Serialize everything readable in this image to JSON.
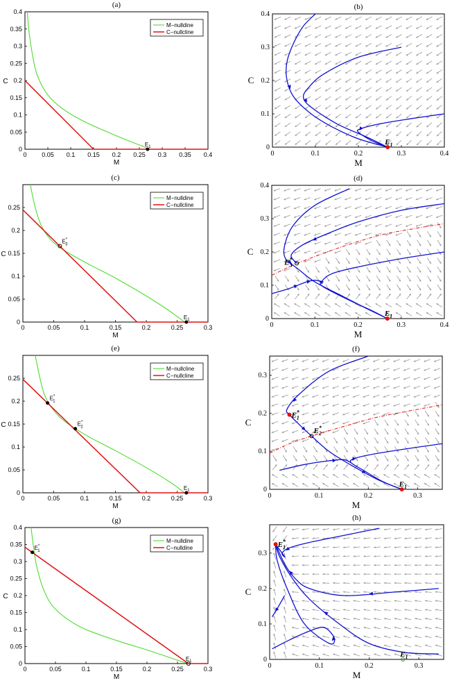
{
  "colors": {
    "m_nullcline": "#4ddb2c",
    "c_nullcline": "#e01010",
    "trajectory": "#1010d0",
    "separatrix": "#e01010",
    "vector_field": "#9a9a9a",
    "unstable_point": "#e01010",
    "stable_point": "#2a9a2a"
  },
  "chart_data": [
    {
      "id": "a",
      "type": "line",
      "title": "(a)",
      "xlabel": "M",
      "ylabel": "C",
      "xlim": [
        0,
        0.4
      ],
      "ylim": [
        0,
        0.4
      ],
      "xticks": [
        "0",
        "0.05",
        "0.1",
        "0.15",
        "0.2",
        "0.25",
        "0.3",
        "0.35",
        "0.4"
      ],
      "xtick_values": [
        0,
        0.05,
        0.1,
        0.15,
        0.2,
        0.25,
        0.3,
        0.35,
        0.4
      ],
      "yticks": [
        "0",
        "0.05",
        "0.1",
        "0.15",
        "0.2",
        "0.25",
        "0.3",
        "0.35",
        "0.4"
      ],
      "ytick_values": [
        0,
        0.05,
        0.1,
        0.15,
        0.2,
        0.25,
        0.3,
        0.35,
        0.4
      ],
      "legend": [
        "M−nulldine",
        "C−nullcline"
      ],
      "series": [
        {
          "name": "M−nulldine",
          "color": "#4ddb2c",
          "x": [
            0.005,
            0.01,
            0.02,
            0.03,
            0.05,
            0.08,
            0.12,
            0.17,
            0.22,
            0.26,
            0.268
          ],
          "y": [
            0.4,
            0.33,
            0.25,
            0.205,
            0.158,
            0.12,
            0.087,
            0.056,
            0.028,
            0.007,
            0
          ]
        },
        {
          "name": "C−nullcline",
          "color": "#e01010",
          "x": [
            0,
            0.15,
            0.4
          ],
          "y": [
            0.2,
            0,
            0
          ]
        }
      ],
      "points": [
        {
          "label": "E",
          "sub": "1",
          "sup": "",
          "x": 0.268,
          "y": 0,
          "style": "black-dot"
        }
      ]
    },
    {
      "id": "b",
      "type": "phase",
      "title": "(b)",
      "xlabel": "M",
      "ylabel": "C",
      "xlim": [
        0,
        0.4
      ],
      "ylim": [
        0,
        0.4
      ],
      "xticks": [
        "0",
        "0.1",
        "0.2",
        "0.3",
        "0.4"
      ],
      "xtick_values": [
        0,
        0.1,
        0.2,
        0.3,
        0.4
      ],
      "yticks": [
        "0",
        "0.1",
        "0.2",
        "0.3",
        "0.4"
      ],
      "ytick_values": [
        0,
        0.1,
        0.2,
        0.3,
        0.4
      ],
      "trajectories": [
        {
          "x": [
            0.1,
            0.07,
            0.045,
            0.033,
            0.034,
            0.05,
            0.09,
            0.14,
            0.2,
            0.268
          ],
          "y": [
            0.4,
            0.36,
            0.3,
            0.25,
            0.2,
            0.15,
            0.1,
            0.06,
            0.025,
            0
          ],
          "arrow": 1
        },
        {
          "x": [
            0.3,
            0.2,
            0.12,
            0.085,
            0.072,
            0.09,
            0.15,
            0.22,
            0.268
          ],
          "y": [
            0.3,
            0.27,
            0.22,
            0.18,
            0.15,
            0.12,
            0.07,
            0.03,
            0
          ],
          "arrow": 1
        },
        {
          "x": [
            0.4,
            0.32,
            0.25,
            0.205,
            0.2,
            0.23,
            0.268
          ],
          "y": [
            0.1,
            0.085,
            0.07,
            0.055,
            0.045,
            0.02,
            0
          ],
          "arrow": 1
        }
      ],
      "separatrix": [],
      "points": [
        {
          "label": "E",
          "sub": "1",
          "sup": "",
          "x": 0.268,
          "y": 0,
          "style": "red-dot"
        }
      ],
      "field": {
        "kind": "b"
      }
    },
    {
      "id": "c",
      "type": "line",
      "title": "(c)",
      "xlabel": "M",
      "ylabel": "C",
      "xlim": [
        0,
        0.3
      ],
      "ylim": [
        0,
        0.3
      ],
      "xticks": [
        "0",
        "0.05",
        "0.1",
        "0.15",
        "0.2",
        "0.25",
        "0.3"
      ],
      "xtick_values": [
        0,
        0.05,
        0.1,
        0.15,
        0.2,
        0.25,
        0.3
      ],
      "yticks": [
        "0",
        "0.05",
        "0.1",
        "0.15",
        "0.2",
        "0.25"
      ],
      "ytick_values": [
        0,
        0.05,
        0.1,
        0.15,
        0.2,
        0.25
      ],
      "legend": [
        "M−nulldine",
        "C−nullcline"
      ],
      "series": [
        {
          "name": "M−nulldine",
          "color": "#4ddb2c",
          "x": [
            0.012,
            0.02,
            0.03,
            0.045,
            0.06,
            0.08,
            0.11,
            0.15,
            0.2,
            0.24,
            0.262
          ],
          "y": [
            0.3,
            0.25,
            0.21,
            0.18,
            0.163,
            0.146,
            0.124,
            0.096,
            0.057,
            0.022,
            0
          ],
          "arrow": 0
        },
        {
          "name": "C−nullcline",
          "color": "#e01010",
          "x": [
            0,
            0.185,
            0.3
          ],
          "y": [
            0.245,
            0,
            0
          ]
        }
      ],
      "points": [
        {
          "label": "E",
          "sub": "3",
          "sup": "*",
          "x": 0.06,
          "y": 0.166,
          "style": "open"
        },
        {
          "label": "E",
          "sub": "1",
          "sup": "",
          "x": 0.265,
          "y": 0,
          "style": "black-dot"
        }
      ]
    },
    {
      "id": "d",
      "type": "phase",
      "title": "(d)",
      "xlabel": "M",
      "ylabel": "C",
      "xlim": [
        0,
        0.4
      ],
      "ylim": [
        0,
        0.4
      ],
      "xticks": [
        "0",
        "0.1",
        "0.2",
        "0.3",
        "0.4"
      ],
      "xtick_values": [
        0,
        0.1,
        0.2,
        0.3,
        0.4
      ],
      "yticks": [
        "0",
        "0.1",
        "0.2",
        "0.3",
        "0.4"
      ],
      "ytick_values": [
        0,
        0.1,
        0.2,
        0.3,
        0.4
      ],
      "trajectories": [
        {
          "x": [
            0.18,
            0.1,
            0.05,
            0.03,
            0.032,
            0.06,
            0.1,
            0.16,
            0.22,
            0.268
          ],
          "y": [
            0.39,
            0.34,
            0.28,
            0.22,
            0.18,
            0.15,
            0.11,
            0.07,
            0.03,
            0
          ],
          "arrow": 1
        },
        {
          "x": [
            0.4,
            0.3,
            0.2,
            0.12,
            0.07,
            0.045,
            0.058
          ],
          "y": [
            0.345,
            0.325,
            0.29,
            0.25,
            0.22,
            0.19,
            0.166
          ],
          "arrow": 1
        },
        {
          "x": [
            0.4,
            0.3,
            0.2,
            0.14,
            0.115,
            0.12,
            0.18,
            0.23,
            0.268
          ],
          "y": [
            0.2,
            0.18,
            0.155,
            0.135,
            0.11,
            0.095,
            0.055,
            0.025,
            0
          ],
          "arrow": 1
        },
        {
          "x": [
            0.0,
            0.04,
            0.08,
            0.1,
            0.12
          ],
          "y": [
            0.075,
            0.09,
            0.11,
            0.115,
            0.11
          ],
          "arrow": 2
        }
      ],
      "separatrix": [
        {
          "x": [
            0.0,
            0.06,
            0.15,
            0.25,
            0.33,
            0.4
          ],
          "y": [
            0.13,
            0.166,
            0.21,
            0.25,
            0.27,
            0.285
          ]
        }
      ],
      "points": [
        {
          "label": "E",
          "sub": "3",
          "sup": "*",
          "x": 0.058,
          "y": 0.166,
          "style": "open"
        },
        {
          "label": "E",
          "sub": "1",
          "sup": "",
          "x": 0.268,
          "y": 0,
          "style": "red-dot"
        }
      ],
      "field": {
        "kind": "d"
      }
    },
    {
      "id": "e",
      "type": "line",
      "title": "(e)",
      "xlabel": "M",
      "ylabel": "C",
      "xlim": [
        0,
        0.3
      ],
      "ylim": [
        0,
        0.3
      ],
      "xticks": [
        "0",
        "0.05",
        "0.1",
        "0.15",
        "0.2",
        "0.25",
        "0.3"
      ],
      "xtick_values": [
        0,
        0.05,
        0.1,
        0.15,
        0.2,
        0.25,
        0.3
      ],
      "yticks": [
        "0",
        "0.05",
        "0.1",
        "0.15",
        "0.2",
        "0.25"
      ],
      "ytick_values": [
        0,
        0.05,
        0.1,
        0.15,
        0.2,
        0.25
      ],
      "legend": [
        "M−nullcline",
        "C−nullcline"
      ],
      "series": [
        {
          "name": "M−nullcline",
          "color": "#4ddb2c",
          "x": [
            0.02,
            0.03,
            0.04,
            0.06,
            0.085,
            0.11,
            0.15,
            0.2,
            0.24,
            0.262
          ],
          "y": [
            0.3,
            0.237,
            0.2,
            0.165,
            0.14,
            0.12,
            0.092,
            0.055,
            0.022,
            0
          ]
        },
        {
          "name": "C−nullcline",
          "color": "#e01010",
          "x": [
            0,
            0.19,
            0.3
          ],
          "y": [
            0.248,
            0,
            0
          ]
        }
      ],
      "points": [
        {
          "label": "E",
          "sub": "1",
          "sup": "*",
          "x": 0.04,
          "y": 0.196,
          "style": "black-dot"
        },
        {
          "label": "E",
          "sub": "2",
          "sup": "*",
          "x": 0.085,
          "y": 0.14,
          "style": "black-dot"
        },
        {
          "label": "E",
          "sub": "1",
          "sup": "",
          "x": 0.265,
          "y": 0,
          "style": "black-dot"
        }
      ]
    },
    {
      "id": "f",
      "type": "phase",
      "title": "(f)",
      "xlabel": "M",
      "ylabel": "C",
      "xlim": [
        0,
        0.35
      ],
      "ylim": [
        0,
        0.35
      ],
      "xticks": [
        "0",
        "0.1",
        "0.2",
        "0.3"
      ],
      "xtick_values": [
        0,
        0.1,
        0.2,
        0.3
      ],
      "yticks": [
        "0",
        "0.1",
        "0.2",
        "0.3"
      ],
      "ytick_values": [
        0,
        0.1,
        0.2,
        0.3
      ],
      "trajectories": [
        {
          "x": [
            0.2,
            0.12,
            0.06,
            0.035,
            0.04
          ],
          "y": [
            0.35,
            0.31,
            0.25,
            0.21,
            0.196
          ],
          "arrow": 1
        },
        {
          "x": [
            0.04,
            0.06,
            0.085,
            0.12,
            0.17,
            0.22,
            0.268
          ],
          "y": [
            0.196,
            0.17,
            0.14,
            0.1,
            0.06,
            0.025,
            0
          ],
          "arrow": 2
        },
        {
          "x": [
            0.35,
            0.27,
            0.2,
            0.17,
            0.165,
            0.19,
            0.23,
            0.268
          ],
          "y": [
            0.12,
            0.105,
            0.09,
            0.08,
            0.07,
            0.05,
            0.02,
            0
          ],
          "arrow": 1
        },
        {
          "x": [
            0.02,
            0.07,
            0.12,
            0.15,
            0.165
          ],
          "y": [
            0.05,
            0.065,
            0.075,
            0.078,
            0.07
          ],
          "arrow": 1
        }
      ],
      "separatrix": [
        {
          "x": [
            0.0,
            0.04,
            0.085,
            0.15,
            0.22,
            0.3,
            0.35
          ],
          "y": [
            0.095,
            0.12,
            0.14,
            0.165,
            0.19,
            0.21,
            0.222
          ]
        }
      ],
      "points": [
        {
          "label": "E",
          "sub": "1",
          "sup": "*",
          "x": 0.04,
          "y": 0.196,
          "style": "red-dot"
        },
        {
          "label": "E",
          "sub": "2",
          "sup": "*",
          "x": 0.085,
          "y": 0.14,
          "style": "open"
        },
        {
          "label": "E",
          "sub": "1",
          "sup": "",
          "x": 0.268,
          "y": 0,
          "style": "red-dot"
        }
      ],
      "field": {
        "kind": "f"
      }
    },
    {
      "id": "g",
      "type": "line",
      "title": "(g)",
      "xlabel": "M",
      "ylabel": "C",
      "xlim": [
        0,
        0.3
      ],
      "ylim": [
        0,
        0.4
      ],
      "xticks": [
        "0",
        "0.05",
        "0.1",
        "0.15",
        "0.2",
        "0.25",
        "0.3"
      ],
      "xtick_values": [
        0,
        0.05,
        0.1,
        0.15,
        0.2,
        0.25,
        0.3
      ],
      "yticks": [
        "0",
        "0.05",
        "0.1",
        "0.15",
        "0.2",
        "0.25",
        "0.3",
        "0.35",
        "0.4"
      ],
      "ytick_values": [
        0,
        0.05,
        0.1,
        0.15,
        0.2,
        0.25,
        0.3,
        0.35,
        0.4
      ],
      "legend": [
        "M−nulldine",
        "C−nulldine"
      ],
      "series": [
        {
          "name": "M−nulldine",
          "color": "#4ddb2c",
          "x": [
            0.01,
            0.015,
            0.02,
            0.03,
            0.045,
            0.07,
            0.1,
            0.15,
            0.2,
            0.25,
            0.268
          ],
          "y": [
            0.4,
            0.33,
            0.28,
            0.22,
            0.17,
            0.13,
            0.1,
            0.068,
            0.04,
            0.01,
            0
          ]
        },
        {
          "name": "C−nulldine",
          "color": "#e01010",
          "x": [
            0,
            0.268,
            0.3
          ],
          "y": [
            0.342,
            0,
            0
          ]
        }
      ],
      "points": [
        {
          "label": "E",
          "sub": "1",
          "sup": "*",
          "x": 0.012,
          "y": 0.327,
          "style": "black-dot"
        },
        {
          "label": "E",
          "sub": "1",
          "sup": "",
          "x": 0.268,
          "y": 0,
          "style": "open"
        }
      ]
    },
    {
      "id": "h",
      "type": "phase",
      "title": "(h)",
      "xlabel": "M",
      "ylabel": "C",
      "xlim": [
        0,
        0.35
      ],
      "ylim": [
        0,
        0.38
      ],
      "xticks": [
        "0",
        "0.1",
        "0.2",
        "0.3"
      ],
      "xtick_values": [
        0,
        0.1,
        0.2,
        0.3
      ],
      "yticks": [
        "0",
        "0.1",
        "0.2",
        "0.3"
      ],
      "ytick_values": [
        0,
        0.1,
        0.2,
        0.3
      ],
      "trajectories": [
        {
          "x": [
            0.22,
            0.15,
            0.08,
            0.04,
            0.025,
            0.03,
            0.012
          ],
          "y": [
            0.37,
            0.35,
            0.33,
            0.315,
            0.3,
            0.29,
            0.325
          ],
          "arrow": 1
        },
        {
          "x": [
            0.34,
            0.25,
            0.15,
            0.08,
            0.05,
            0.03,
            0.012
          ],
          "y": [
            0.2,
            0.19,
            0.18,
            0.2,
            0.23,
            0.27,
            0.325
          ],
          "arrow": 2
        },
        {
          "x": [
            0.34,
            0.27,
            0.2,
            0.14,
            0.08,
            0.045,
            0.02,
            0.012
          ],
          "y": [
            0.015,
            0.02,
            0.045,
            0.1,
            0.17,
            0.23,
            0.29,
            0.325
          ],
          "arrow": 1
        },
        {
          "x": [
            0.005,
            0.04,
            0.08,
            0.11,
            0.13,
            0.12,
            0.07,
            0.035,
            0.015,
            0.012
          ],
          "y": [
            0.03,
            0.055,
            0.08,
            0.09,
            0.06,
            0.045,
            0.1,
            0.2,
            0.28,
            0.325
          ],
          "arrow": 1
        },
        {
          "x": [
            0.03,
            0.018,
            0.005
          ],
          "y": [
            0.18,
            0.15,
            0.12
          ],
          "arrow": 1
        }
      ],
      "separatrix": [],
      "points": [
        {
          "label": "E",
          "sub": "1",
          "sup": "*",
          "x": 0.012,
          "y": 0.325,
          "style": "red-dot"
        },
        {
          "label": "E",
          "sub": "1",
          "sup": "",
          "x": 0.268,
          "y": 0,
          "style": "green-open"
        }
      ],
      "field": {
        "kind": "h"
      }
    }
  ]
}
